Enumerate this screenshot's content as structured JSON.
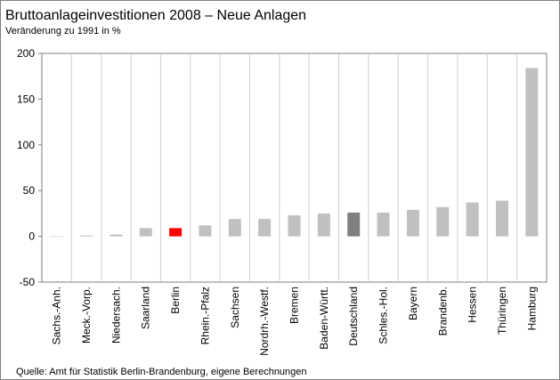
{
  "chart_data": {
    "type": "bar",
    "title": "Bruttoanlageinvestitionen 2008 – Neue Anlagen",
    "subtitle": "Veränderung zu 1991 in %",
    "source": "Quelle: Amt für Statistik Berlin-Brandenburg, eigene Berechnungen",
    "categories": [
      "Sachs.-Anh.",
      "Meck.-Vorp.",
      "Niedersach.",
      "Saarland",
      "Berlin",
      "Rhein.-Pfalz",
      "Sachsen",
      "Nordrh.-Westf.",
      "Bremen",
      "Baden-Württ.",
      "Deutschland",
      "Schles.-Hol.",
      "Bayern",
      "Brandenb.",
      "Hessen",
      "Thüringen",
      "Hamburg"
    ],
    "values": [
      0,
      1,
      2,
      9,
      9,
      12,
      19,
      19,
      23,
      25,
      26,
      26,
      29,
      32,
      37,
      39,
      184
    ],
    "colors": [
      "#c0c0c0",
      "#c0c0c0",
      "#c0c0c0",
      "#c0c0c0",
      "#ff0000",
      "#c0c0c0",
      "#c0c0c0",
      "#c0c0c0",
      "#c0c0c0",
      "#c0c0c0",
      "#808080",
      "#c0c0c0",
      "#c0c0c0",
      "#c0c0c0",
      "#c0c0c0",
      "#c0c0c0",
      "#c0c0c0"
    ],
    "ylim": [
      -50,
      200
    ],
    "yticks": [
      -50,
      0,
      50,
      100,
      150,
      200
    ],
    "grid": true
  }
}
